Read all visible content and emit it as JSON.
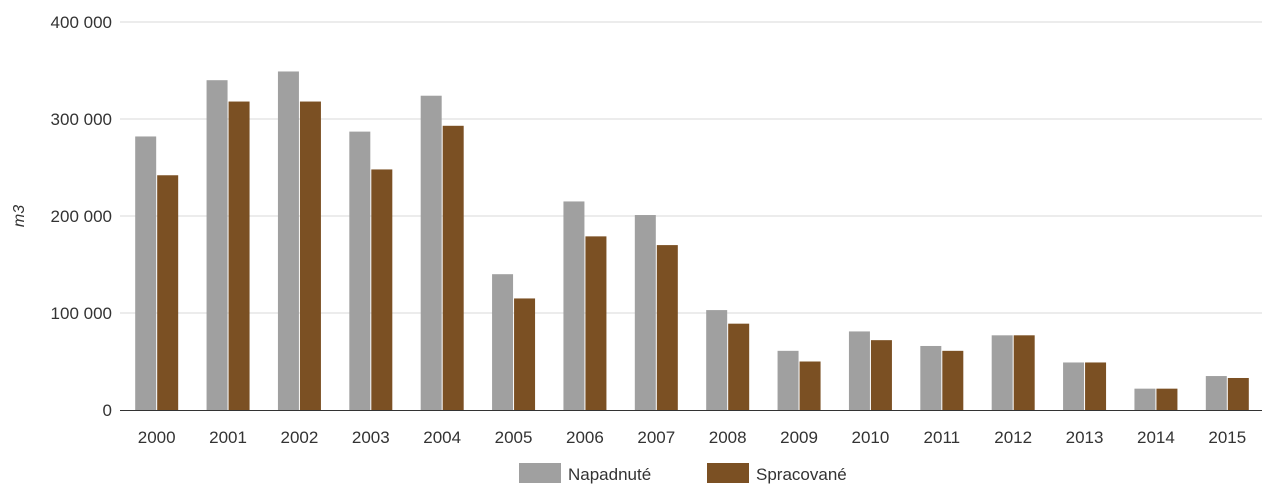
{
  "chart_data": {
    "type": "bar",
    "title": "",
    "xlabel": "",
    "ylabel": "m3",
    "ylim": [
      0,
      400000
    ],
    "yticks": [
      0,
      100000,
      200000,
      300000,
      400000
    ],
    "ytick_labels": [
      "0",
      "100 000",
      "200 000",
      "300 000",
      "400 000"
    ],
    "grid": true,
    "legend_position": "bottom",
    "categories": [
      "2000",
      "2001",
      "2002",
      "2003",
      "2004",
      "2005",
      "2006",
      "2007",
      "2008",
      "2009",
      "2010",
      "2011",
      "2012",
      "2013",
      "2014",
      "2015"
    ],
    "series": [
      {
        "name": "Napadnuté",
        "color": "#a0a0a0",
        "values": [
          282000,
          340000,
          349000,
          287000,
          324000,
          140000,
          215000,
          201000,
          103000,
          61000,
          81000,
          66000,
          77000,
          49000,
          22000,
          35000
        ]
      },
      {
        "name": "Spracované",
        "color": "#7b5023",
        "values": [
          242000,
          318000,
          318000,
          248000,
          293000,
          115000,
          179000,
          170000,
          89000,
          50000,
          72000,
          61000,
          77000,
          49000,
          22000,
          33000
        ]
      }
    ]
  }
}
